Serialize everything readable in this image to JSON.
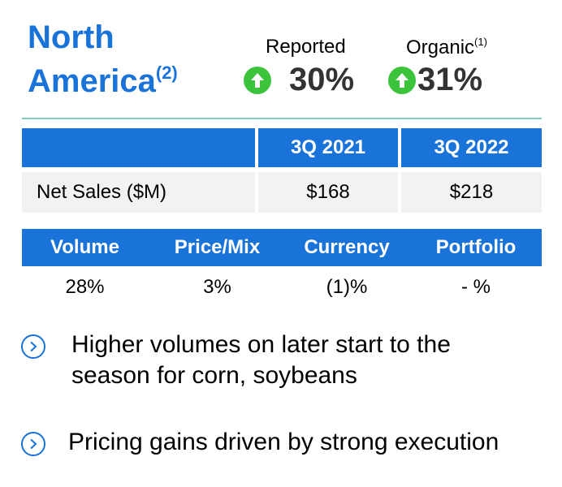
{
  "header": {
    "title_line1": "North",
    "title_line2": "America",
    "title_footnote": "(2)"
  },
  "metrics": {
    "reported": {
      "label": "Reported",
      "value": "30%",
      "direction": "up"
    },
    "organic": {
      "label": "Organic",
      "footnote": "(1)",
      "value": "31%",
      "direction": "up"
    }
  },
  "colors": {
    "accent": "#1a73d9",
    "up_arrow": "#3cc33c",
    "divider": "#7ecfc0"
  },
  "sales_table": {
    "columns": [
      "",
      "3Q 2021",
      "3Q 2022"
    ],
    "row_label": "Net Sales ($M)",
    "values": [
      "$168",
      "$218"
    ]
  },
  "drivers_table": {
    "columns": [
      "Volume",
      "Price/Mix",
      "Currency",
      "Portfolio"
    ],
    "values": [
      "28%",
      "3%",
      "(1)%",
      "- %"
    ]
  },
  "bullets": [
    "Higher volumes on later start to the season for corn, soybeans",
    "Pricing gains driven by strong execution"
  ]
}
